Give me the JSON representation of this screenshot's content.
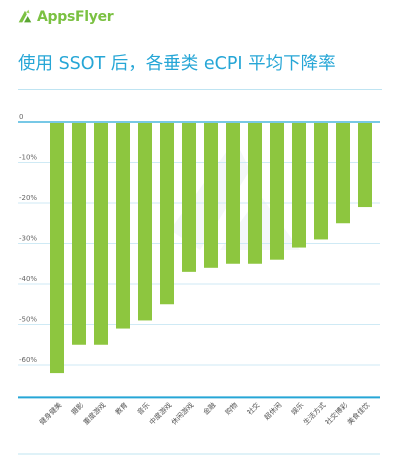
{
  "brand": {
    "name": "AppsFlyer",
    "color": "#7bc142"
  },
  "title": "使用 SSOT 后，各垂类 eCPI 平均下降率",
  "chart_data": {
    "type": "bar",
    "categories": [
      "健身健美",
      "摄影",
      "重度游戏",
      "教育",
      "音乐",
      "中度游戏",
      "休闲游戏",
      "金融",
      "购物",
      "社交",
      "超休闲",
      "娱乐",
      "生活方式",
      "社交博彩",
      "美食佳饮"
    ],
    "values": [
      -62,
      -55,
      -55,
      -51,
      -49,
      -45,
      -37,
      -36,
      -35,
      -35,
      -34,
      -31,
      -29,
      -25,
      -21
    ],
    "y_ticks": [
      "0",
      "-10%",
      "-20%",
      "-30%",
      "-40%",
      "-50%",
      "-60%"
    ],
    "ylim": [
      -65,
      0
    ],
    "grid": true,
    "bar_color": "#8dc63f",
    "grid_color": "#cfeaf5",
    "axis_color": "#26a6d6",
    "tick_color": "#666666"
  }
}
